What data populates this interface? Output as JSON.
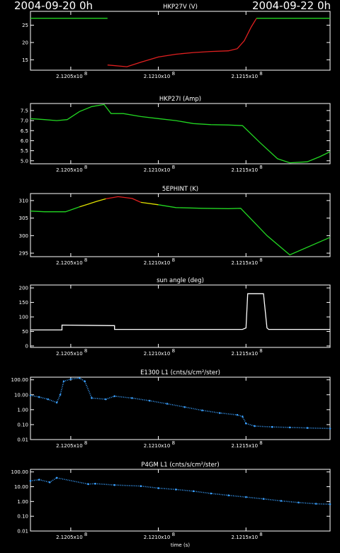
{
  "header": {
    "left_date": "2004-09-20 0h",
    "right_date": "2004-09-22 0h"
  },
  "colors": {
    "normal": "#22d622",
    "caution": "#e0e000",
    "alarm": "#e02020",
    "white": "#ffffff",
    "flux": "#3aa0ff"
  },
  "chart_data": [
    {
      "type": "line",
      "title": "HKP27V (V)",
      "xlim": [
        212027000.0,
        212198000.0
      ],
      "ylim": [
        12,
        29
      ],
      "yticks": [
        15,
        20,
        25
      ],
      "ytick_labels": [
        "15",
        "20",
        "25"
      ],
      "xticks": [
        212050000.0,
        212100000.0,
        212150000.0
      ],
      "xtick_labels": [
        "2.1205x10",
        "2.1210x10",
        "2.1215x10"
      ],
      "xtick_exp": "8",
      "series": [
        {
          "color": "normal",
          "x": [
            212027000.0,
            212071000.0
          ],
          "y": [
            27,
            27
          ]
        },
        {
          "color": "alarm",
          "x": [
            212071000.0,
            212082000.0,
            212090000.0,
            212100000.0,
            212110000.0,
            212120000.0,
            212130000.0,
            212140000.0,
            212145000.0,
            212149000.0,
            212153000.0,
            212156000.0
          ],
          "y": [
            13.5,
            13.0,
            14.3,
            15.8,
            16.6,
            17.1,
            17.4,
            17.6,
            18.2,
            20.5,
            24.5,
            27
          ]
        },
        {
          "color": "normal",
          "x": [
            212156000.0,
            212198000.0
          ],
          "y": [
            27,
            27
          ]
        }
      ]
    },
    {
      "type": "line",
      "title": "HKP27I (Amp)",
      "xlim": [
        212027000.0,
        212198000.0
      ],
      "ylim": [
        4.85,
        7.85
      ],
      "yticks": [
        5.0,
        5.5,
        6.0,
        6.5,
        7.0,
        7.5
      ],
      "ytick_labels": [
        "5.0",
        "5.5",
        "6.0",
        "6.5",
        "7.0",
        "7.5"
      ],
      "xticks": [
        212050000.0,
        212100000.0,
        212150000.0
      ],
      "xtick_labels": [
        "2.1205x10",
        "2.1210x10",
        "2.1215x10"
      ],
      "xtick_exp": "8",
      "series": [
        {
          "color": "normal",
          "x": [
            212027000.0,
            212035000.0,
            212042000.0,
            212048000.0,
            212055000.0,
            212062000.0,
            212069000.0,
            212073000.0,
            212080000.0,
            212090000.0,
            212100000.0,
            212110000.0,
            212120000.0,
            212130000.0,
            212140000.0,
            212148000.0,
            212158000.0,
            212168000.0,
            212175000.0,
            212185000.0,
            212192000.0,
            212198000.0
          ],
          "y": [
            7.1,
            7.05,
            7.0,
            7.05,
            7.45,
            7.7,
            7.8,
            7.35,
            7.35,
            7.2,
            7.1,
            7.0,
            6.85,
            6.8,
            6.78,
            6.75,
            5.9,
            5.1,
            4.9,
            4.95,
            5.2,
            5.45
          ]
        }
      ]
    },
    {
      "type": "line",
      "title": "5EPHINT (K)",
      "xlim": [
        212027000.0,
        212198000.0
      ],
      "ylim": [
        294,
        312
      ],
      "yticks": [
        295,
        300,
        305,
        310
      ],
      "ytick_labels": [
        "295",
        "300",
        "305",
        "310"
      ],
      "xticks": [
        212050000.0,
        212100000.0,
        212150000.0
      ],
      "xtick_labels": [
        "2.1205x10",
        "2.1210x10",
        "2.1215x10"
      ],
      "xtick_exp": "8",
      "series": [
        {
          "color": "normal",
          "x": [
            212027000.0,
            212035000.0,
            212047000.0,
            212055000.0
          ],
          "y": [
            307,
            306.8,
            306.8,
            308.2
          ]
        },
        {
          "color": "caution",
          "x": [
            212055000.0,
            212065000.0,
            212070000.0
          ],
          "y": [
            308.2,
            309.8,
            310.5
          ]
        },
        {
          "color": "alarm",
          "x": [
            212070000.0,
            212077000.0,
            212085000.0,
            212090000.0
          ],
          "y": [
            310.5,
            311.1,
            310.6,
            309.5
          ]
        },
        {
          "color": "caution",
          "x": [
            212090000.0,
            212100000.0
          ],
          "y": [
            309.5,
            308.8
          ]
        },
        {
          "color": "normal",
          "x": [
            212100000.0,
            212110000.0,
            212125000.0,
            212140000.0,
            212147000.0,
            212162000.0,
            212175000.0,
            212198000.0
          ],
          "y": [
            308.8,
            308.0,
            307.8,
            307.7,
            307.8,
            300.0,
            294.5,
            299.5
          ]
        }
      ]
    },
    {
      "type": "line",
      "title": "sun angle (deg)",
      "xlim": [
        212027000.0,
        212198000.0
      ],
      "ylim": [
        -5,
        210
      ],
      "yticks": [
        0,
        50,
        100,
        150,
        200
      ],
      "ytick_labels": [
        "0",
        "50",
        "100",
        "150",
        "200"
      ],
      "xticks": [
        212050000.0,
        212100000.0,
        212150000.0
      ],
      "xtick_labels": [
        "2.1205x10",
        "2.1210x10",
        "2.1215x10"
      ],
      "xtick_exp": "8",
      "series": [
        {
          "color": "white",
          "x": [
            212027000.0,
            212045000.0,
            212045000.0,
            212075000.0,
            212075000.0,
            212148000.0,
            212150000.0,
            212151000.0,
            212160000.0,
            212162000.0,
            212163000.0,
            212198000.0
          ],
          "y": [
            55,
            55,
            72,
            70,
            57,
            57,
            62,
            180,
            180,
            62,
            57,
            57
          ]
        }
      ]
    },
    {
      "type": "scatter",
      "title": "E1300 L1 (cnts/s/cm²/ster)",
      "log_y": true,
      "xlim": [
        212027000.0,
        212198000.0
      ],
      "ylim": [
        0.01,
        150
      ],
      "yticks": [
        0.01,
        0.1,
        1,
        10,
        100
      ],
      "ytick_labels": [
        "0.01",
        "0.10",
        "1.00",
        "10.00",
        "100.00"
      ],
      "xticks": [
        212050000.0,
        212100000.0,
        212150000.0
      ],
      "xtick_labels": [
        "2.1205x10",
        "2.1210x10",
        "2.1215x10"
      ],
      "xtick_exp": "8",
      "series": [
        {
          "color": "flux",
          "x": [
            212027000.0,
            212032000.0,
            212037000.0,
            212042000.0,
            212044000.0,
            212046000.0,
            212050000.0,
            212055000.0,
            212058000.0,
            212062000.0,
            212070000.0,
            212075000.0,
            212085000.0,
            212095000.0,
            212105000.0,
            212115000.0,
            212125000.0,
            212135000.0,
            212145000.0,
            212148000.0,
            212150000.0,
            212155000.0,
            212165000.0,
            212175000.0,
            212185000.0,
            212198000.0
          ],
          "y": [
            9,
            7,
            5,
            3,
            10,
            80,
            110,
            130,
            80,
            6,
            5,
            8,
            6,
            4,
            2.5,
            1.5,
            0.9,
            0.6,
            0.45,
            0.35,
            0.12,
            0.08,
            0.07,
            0.065,
            0.06,
            0.055
          ]
        }
      ]
    },
    {
      "type": "scatter",
      "title": "P4GM L1 (cnts/s/cm²/ster)",
      "log_y": true,
      "xlim": [
        212027000.0,
        212198000.0
      ],
      "ylim": [
        0.01,
        150
      ],
      "yticks": [
        0.01,
        0.1,
        1,
        10,
        100
      ],
      "ytick_labels": [
        "0.01",
        "0.10",
        "1.00",
        "10.00",
        "100.00"
      ],
      "xticks": [
        212050000.0,
        212100000.0,
        212150000.0
      ],
      "xtick_labels": [
        "2.1205x10",
        "2.1210x10",
        "2.1215x10"
      ],
      "xtick_exp": "8",
      "xlabel": "time (s)",
      "series": [
        {
          "color": "flux",
          "x": [
            212027000.0,
            212032000.0,
            212038000.0,
            212042000.0,
            212060000.0,
            212064000.0,
            212075000.0,
            212090000.0,
            212100000.0,
            212110000.0,
            212120000.0,
            212130000.0,
            212140000.0,
            212150000.0,
            212160000.0,
            212170000.0,
            212180000.0,
            212190000.0,
            212198000.0
          ],
          "y": [
            25,
            30,
            20,
            40,
            15,
            16,
            13,
            11,
            8,
            6.5,
            5,
            3.5,
            2.6,
            2.0,
            1.5,
            1.1,
            0.85,
            0.7,
            0.65
          ]
        }
      ]
    }
  ]
}
